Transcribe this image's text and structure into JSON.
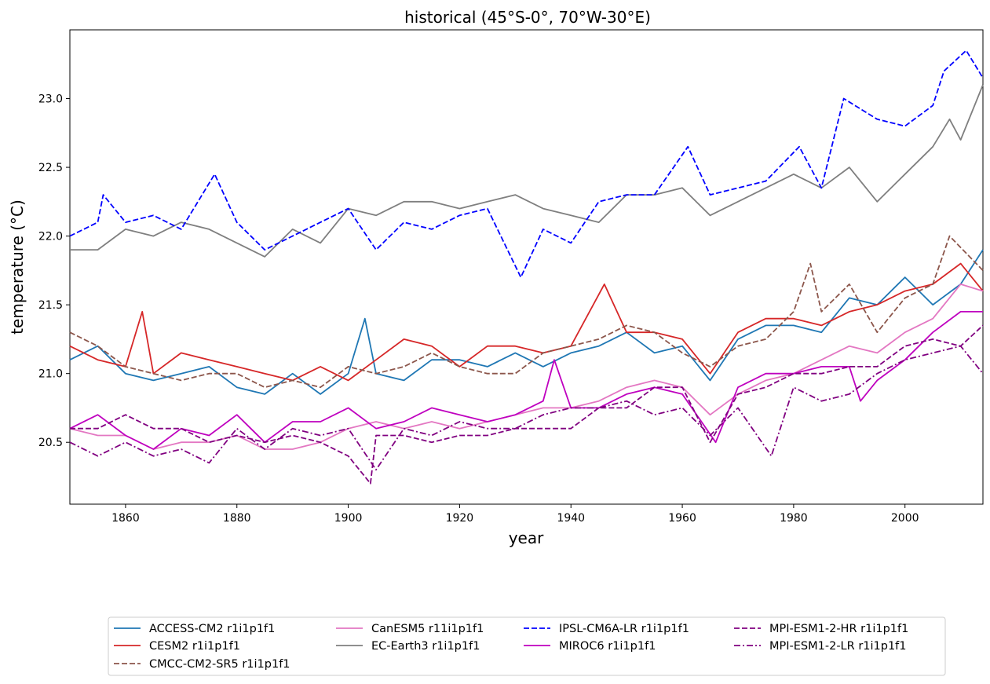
{
  "chart_data": {
    "type": "line",
    "title": "historical (45°S-0°, 70°W-30°E)",
    "xlabel": "year",
    "ylabel": "temperature (°C)",
    "xlim": [
      1850,
      2014
    ],
    "ylim": [
      20.05,
      23.5
    ],
    "xticks": [
      1860,
      1880,
      1900,
      1920,
      1940,
      1960,
      1980,
      2000
    ],
    "yticks": [
      20.5,
      21.0,
      21.5,
      22.0,
      22.5,
      23.0
    ],
    "xtick_labels": [
      "1860",
      "1880",
      "1900",
      "1920",
      "1940",
      "1960",
      "1980",
      "2000"
    ],
    "ytick_labels": [
      "20.5",
      "21.0",
      "21.5",
      "22.0",
      "22.5",
      "23.0"
    ],
    "grid": false,
    "legend_position": "below plot, 4 columns",
    "series": [
      {
        "name": "ACCESS-CM2 r1i1p1f1",
        "color": "#1f77b4",
        "dash": "solid",
        "years": [
          1850,
          1855,
          1860,
          1865,
          1870,
          1875,
          1880,
          1885,
          1890,
          1895,
          1900,
          1903,
          1905,
          1910,
          1915,
          1920,
          1925,
          1930,
          1935,
          1940,
          1945,
          1950,
          1955,
          1960,
          1965,
          1970,
          1975,
          1980,
          1985,
          1990,
          1995,
          2000,
          2005,
          2010,
          2014
        ],
        "values": [
          21.1,
          21.2,
          21.0,
          20.95,
          21.0,
          21.05,
          20.9,
          20.85,
          21.0,
          20.85,
          21.0,
          21.4,
          21.0,
          20.95,
          21.1,
          21.1,
          21.05,
          21.15,
          21.05,
          21.15,
          21.2,
          21.3,
          21.15,
          21.2,
          20.95,
          21.25,
          21.35,
          21.35,
          21.3,
          21.55,
          21.5,
          21.7,
          21.5,
          21.65,
          21.9
        ]
      },
      {
        "name": "CESM2 r1i1p1f1",
        "color": "#d62728",
        "dash": "solid",
        "years": [
          1850,
          1855,
          1860,
          1863,
          1865,
          1870,
          1875,
          1880,
          1885,
          1890,
          1895,
          1900,
          1905,
          1910,
          1915,
          1920,
          1925,
          1930,
          1935,
          1940,
          1946,
          1950,
          1955,
          1960,
          1965,
          1970,
          1975,
          1980,
          1985,
          1990,
          1995,
          2000,
          2005,
          2010,
          2014
        ],
        "values": [
          21.2,
          21.1,
          21.05,
          21.45,
          21.0,
          21.15,
          21.1,
          21.05,
          21.0,
          20.95,
          21.05,
          20.95,
          21.1,
          21.25,
          21.2,
          21.05,
          21.2,
          21.2,
          21.15,
          21.2,
          21.65,
          21.3,
          21.3,
          21.25,
          21.0,
          21.3,
          21.4,
          21.4,
          21.35,
          21.45,
          21.5,
          21.6,
          21.65,
          21.8,
          21.6
        ]
      },
      {
        "name": "CMCC-CM2-SR5 r1i1p1f1",
        "color": "#8c564b",
        "dash": "dashed",
        "years": [
          1850,
          1855,
          1860,
          1865,
          1870,
          1875,
          1880,
          1885,
          1890,
          1895,
          1900,
          1905,
          1910,
          1915,
          1920,
          1925,
          1930,
          1935,
          1940,
          1945,
          1950,
          1955,
          1960,
          1965,
          1970,
          1975,
          1980,
          1983,
          1985,
          1990,
          1995,
          2000,
          2005,
          2008,
          2014
        ],
        "values": [
          21.3,
          21.2,
          21.05,
          21.0,
          20.95,
          21.0,
          21.0,
          20.9,
          20.95,
          20.9,
          21.05,
          21.0,
          21.05,
          21.15,
          21.05,
          21.0,
          21.0,
          21.15,
          21.2,
          21.25,
          21.35,
          21.3,
          21.15,
          21.05,
          21.2,
          21.25,
          21.45,
          21.8,
          21.45,
          21.65,
          21.3,
          21.55,
          21.65,
          22.0,
          21.75
        ]
      },
      {
        "name": "CanESM5 r11i1p1f1",
        "color": "#e377c2",
        "dash": "solid",
        "years": [
          1850,
          1855,
          1860,
          1865,
          1870,
          1875,
          1880,
          1885,
          1890,
          1895,
          1900,
          1905,
          1910,
          1915,
          1920,
          1925,
          1930,
          1935,
          1940,
          1945,
          1950,
          1955,
          1960,
          1965,
          1970,
          1975,
          1980,
          1985,
          1990,
          1995,
          2000,
          2005,
          2010,
          2014
        ],
        "values": [
          20.6,
          20.55,
          20.55,
          20.45,
          20.5,
          20.5,
          20.55,
          20.45,
          20.45,
          20.5,
          20.6,
          20.65,
          20.6,
          20.65,
          20.6,
          20.65,
          20.7,
          20.75,
          20.75,
          20.8,
          20.9,
          20.95,
          20.9,
          20.7,
          20.85,
          20.95,
          21.0,
          21.1,
          21.2,
          21.15,
          21.3,
          21.4,
          21.65,
          21.6
        ]
      },
      {
        "name": "EC-Earth3 r1i1p1f1",
        "color": "#7f7f7f",
        "dash": "solid",
        "years": [
          1850,
          1855,
          1860,
          1865,
          1870,
          1875,
          1880,
          1885,
          1890,
          1895,
          1900,
          1905,
          1910,
          1915,
          1920,
          1925,
          1930,
          1935,
          1940,
          1945,
          1950,
          1955,
          1960,
          1965,
          1970,
          1975,
          1980,
          1985,
          1990,
          1995,
          2000,
          2005,
          2008,
          2010,
          2014
        ],
        "values": [
          21.9,
          21.9,
          22.05,
          22.0,
          22.1,
          22.05,
          21.95,
          21.85,
          22.05,
          21.95,
          22.2,
          22.15,
          22.25,
          22.25,
          22.2,
          22.25,
          22.3,
          22.2,
          22.15,
          22.1,
          22.3,
          22.3,
          22.35,
          22.15,
          22.25,
          22.35,
          22.45,
          22.35,
          22.5,
          22.25,
          22.45,
          22.65,
          22.85,
          22.7,
          23.1
        ]
      },
      {
        "name": "IPSL-CM6A-LR r1i1p1f1",
        "color": "#0000ff",
        "dash": "dashed",
        "years": [
          1850,
          1855,
          1856,
          1860,
          1865,
          1870,
          1876,
          1880,
          1885,
          1890,
          1895,
          1900,
          1905,
          1910,
          1915,
          1920,
          1925,
          1931,
          1935,
          1940,
          1945,
          1950,
          1955,
          1961,
          1965,
          1970,
          1975,
          1981,
          1985,
          1989,
          1995,
          2000,
          2005,
          2007,
          2011,
          2014
        ],
        "values": [
          22.0,
          22.1,
          22.3,
          22.1,
          22.15,
          22.05,
          22.45,
          22.1,
          21.9,
          22.0,
          22.1,
          22.2,
          21.9,
          22.1,
          22.05,
          22.15,
          22.2,
          21.7,
          22.05,
          21.95,
          22.25,
          22.3,
          22.3,
          22.65,
          22.3,
          22.35,
          22.4,
          22.65,
          22.35,
          23.0,
          22.85,
          22.8,
          22.95,
          23.2,
          23.35,
          23.15
        ]
      },
      {
        "name": "MIROC6 r1i1p1f1",
        "color": "#bf00bf",
        "dash": "solid",
        "years": [
          1850,
          1855,
          1860,
          1865,
          1870,
          1875,
          1880,
          1885,
          1890,
          1895,
          1900,
          1905,
          1910,
          1915,
          1920,
          1925,
          1930,
          1935,
          1937,
          1940,
          1945,
          1950,
          1955,
          1960,
          1966,
          1970,
          1975,
          1980,
          1985,
          1990,
          1992,
          1995,
          2000,
          2005,
          2010,
          2014
        ],
        "values": [
          20.6,
          20.7,
          20.55,
          20.45,
          20.6,
          20.55,
          20.7,
          20.5,
          20.65,
          20.65,
          20.75,
          20.6,
          20.65,
          20.75,
          20.7,
          20.65,
          20.7,
          20.8,
          21.1,
          20.75,
          20.75,
          20.85,
          20.9,
          20.85,
          20.5,
          20.9,
          21.0,
          21.0,
          21.05,
          21.05,
          20.8,
          20.95,
          21.1,
          21.3,
          21.45,
          21.45
        ]
      },
      {
        "name": "MPI-ESM1-2-HR r1i1p1f1",
        "color": "#800080",
        "dash": "dashed",
        "years": [
          1850,
          1855,
          1860,
          1865,
          1870,
          1875,
          1880,
          1885,
          1890,
          1895,
          1900,
          1904,
          1905,
          1910,
          1915,
          1920,
          1925,
          1930,
          1935,
          1940,
          1945,
          1950,
          1955,
          1960,
          1965,
          1970,
          1975,
          1980,
          1985,
          1990,
          1995,
          2000,
          2005,
          2010,
          2014
        ],
        "values": [
          20.6,
          20.6,
          20.7,
          20.6,
          20.6,
          20.5,
          20.55,
          20.5,
          20.55,
          20.5,
          20.4,
          20.2,
          20.55,
          20.55,
          20.5,
          20.55,
          20.55,
          20.6,
          20.6,
          20.6,
          20.75,
          20.75,
          20.9,
          20.9,
          20.5,
          20.85,
          20.9,
          21.0,
          21.0,
          21.05,
          21.05,
          21.2,
          21.25,
          21.2,
          21.35
        ]
      },
      {
        "name": "MPI-ESM1-2-LR r1i1p1f1",
        "color": "#800080",
        "dash": "dashdot",
        "years": [
          1850,
          1855,
          1860,
          1865,
          1870,
          1875,
          1880,
          1885,
          1890,
          1895,
          1900,
          1905,
          1910,
          1915,
          1920,
          1925,
          1930,
          1935,
          1940,
          1945,
          1950,
          1955,
          1960,
          1965,
          1970,
          1976,
          1980,
          1985,
          1990,
          1995,
          2000,
          2005,
          2010,
          2014
        ],
        "values": [
          20.5,
          20.4,
          20.5,
          20.4,
          20.45,
          20.35,
          20.6,
          20.45,
          20.6,
          20.55,
          20.6,
          20.3,
          20.6,
          20.55,
          20.65,
          20.6,
          20.6,
          20.7,
          20.75,
          20.75,
          20.8,
          20.7,
          20.75,
          20.55,
          20.75,
          20.4,
          20.9,
          20.8,
          20.85,
          21.0,
          21.1,
          21.15,
          21.2,
          21.0
        ]
      }
    ]
  }
}
